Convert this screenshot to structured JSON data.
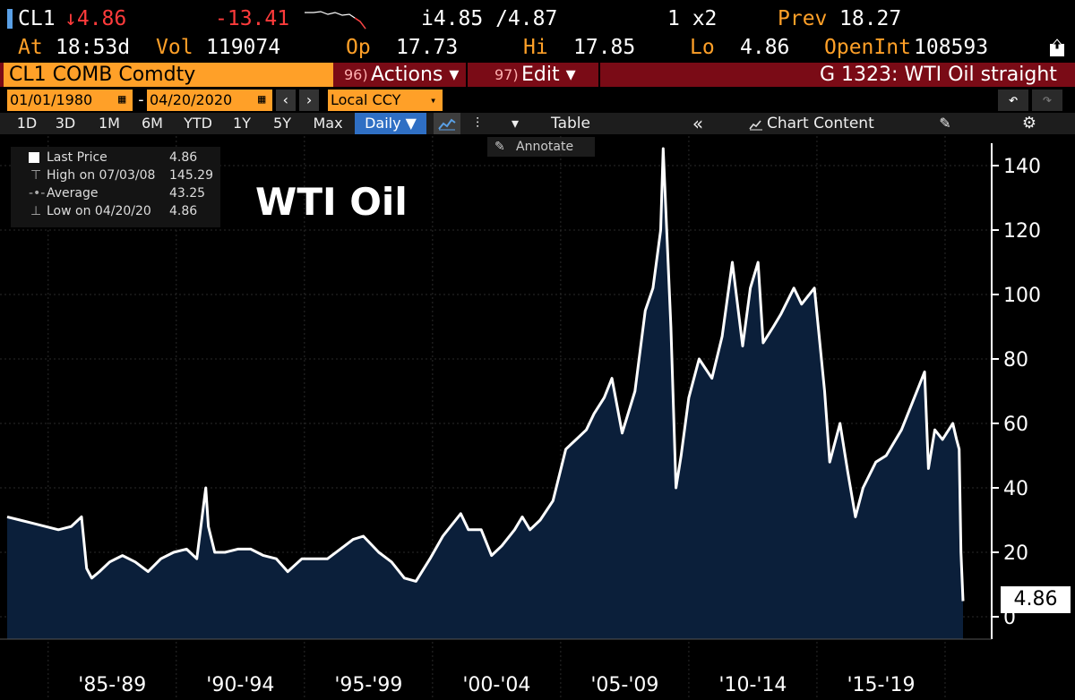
{
  "header": {
    "ticker": "CL1",
    "last": "↓4.86",
    "change": "-13.41",
    "bid_ask": "i4.85 /4.87",
    "size": "1 x2",
    "prev_label": "Prev",
    "prev": "18.27",
    "at_label": "At",
    "time": "18:53d",
    "vol_label": "Vol",
    "vol": "119074",
    "op_label": "Op",
    "op": "17.73",
    "hi_label": "Hi",
    "hi": "17.85",
    "lo_label": "Lo",
    "lo": "4.86",
    "oi_label": "OpenInt",
    "oi": "108593"
  },
  "security_bar": {
    "security": "CL1 COMB Comdty",
    "actions_num": "96)",
    "actions": "Actions ▾",
    "edit_num": "97)",
    "edit": "Edit ▾",
    "graph_title": "G 1323: WTI Oil straight"
  },
  "date_bar": {
    "start": "01/01/1980",
    "end": "04/20/2020",
    "currency": "Local CCY"
  },
  "toolbar": {
    "ranges": [
      "1D",
      "3D",
      "1M",
      "6M",
      "YTD",
      "1Y",
      "5Y",
      "Max"
    ],
    "frequency": "Daily ▼",
    "table": "Table",
    "chart_content": "Chart Content",
    "annotate": "Annotate"
  },
  "legend": {
    "last_label": "Last Price",
    "last_value": "4.86",
    "high_label": "High on 07/03/08",
    "high_value": "145.29",
    "avg_label": "Average",
    "avg_value": "43.25",
    "low_label": "Low on 04/20/20",
    "low_value": "4.86"
  },
  "price_box": "4.86",
  "colors": {
    "area_fill": "#0b1f3a",
    "line": "#ffffff",
    "accent": "#ffa028",
    "bar": "#7a0b16"
  },
  "chart_data": {
    "type": "area",
    "title": "WTI Oil",
    "y_ticks": [
      "0",
      "20",
      "40",
      "60",
      "80",
      "100",
      "120",
      "140"
    ],
    "ylim": [
      0,
      150
    ],
    "xlim": [
      1983.0,
      2020.3
    ],
    "x_tick_labels": [
      "'85-'89",
      "'90-'94",
      "'95-'99",
      "'00-'04",
      "'05-'09",
      "'10-'14",
      "'15-'19"
    ],
    "grid": true,
    "series": [
      {
        "x": [
          1983.0,
          1983.5,
          1984.0,
          1984.5,
          1985.0,
          1985.5,
          1985.9,
          1986.1,
          1986.3,
          1986.6,
          1987.0,
          1987.5,
          1988.0,
          1988.5,
          1989.0,
          1989.5,
          1990.0,
          1990.4,
          1990.75,
          1990.85,
          1991.1,
          1991.5,
          1992.0,
          1992.5,
          1993.0,
          1993.5,
          1993.95,
          1994.5,
          1995.0,
          1995.5,
          1996.0,
          1996.5,
          1996.9,
          1997.5,
          1998.0,
          1998.5,
          1998.95,
          1999.5,
          2000.0,
          2000.7,
          2001.0,
          2001.5,
          2001.9,
          2002.3,
          2002.8,
          2003.1,
          2003.4,
          2003.8,
          2004.3,
          2004.8,
          2005.2,
          2005.6,
          2005.9,
          2006.3,
          2006.6,
          2007.0,
          2007.5,
          2007.9,
          2008.2,
          2008.5,
          2008.6,
          2008.9,
          2009.1,
          2009.3,
          2009.6,
          2010.0,
          2010.5,
          2010.9,
          2011.3,
          2011.7,
          2012.0,
          2012.3,
          2012.5,
          2012.9,
          2013.2,
          2013.7,
          2014.0,
          2014.5,
          2014.9,
          2015.1,
          2015.5,
          2015.8,
          2016.1,
          2016.4,
          2016.9,
          2017.3,
          2017.9,
          2018.3,
          2018.8,
          2018.95,
          2019.2,
          2019.5,
          2019.9,
          2020.05,
          2020.15,
          2020.22,
          2020.3
        ],
        "y": [
          31,
          30,
          29,
          28,
          27,
          28,
          31,
          15,
          12,
          14,
          17,
          19,
          17,
          14,
          18,
          20,
          21,
          18,
          40,
          28,
          20,
          20,
          21,
          21,
          19,
          18,
          14,
          18,
          18,
          18,
          21,
          24,
          25,
          20,
          17,
          12,
          11,
          18,
          25,
          32,
          27,
          27,
          19,
          22,
          27,
          31,
          27,
          30,
          36,
          52,
          55,
          58,
          63,
          68,
          74,
          57,
          70,
          95,
          102,
          120,
          145.29,
          90,
          40,
          50,
          68,
          80,
          74,
          87,
          110,
          84,
          102,
          110,
          85,
          90,
          94,
          102,
          97,
          102,
          70,
          48,
          60,
          45,
          31,
          40,
          48,
          50,
          58,
          66,
          76,
          46,
          58,
          55,
          60,
          55,
          52,
          20,
          4.86
        ]
      }
    ]
  }
}
